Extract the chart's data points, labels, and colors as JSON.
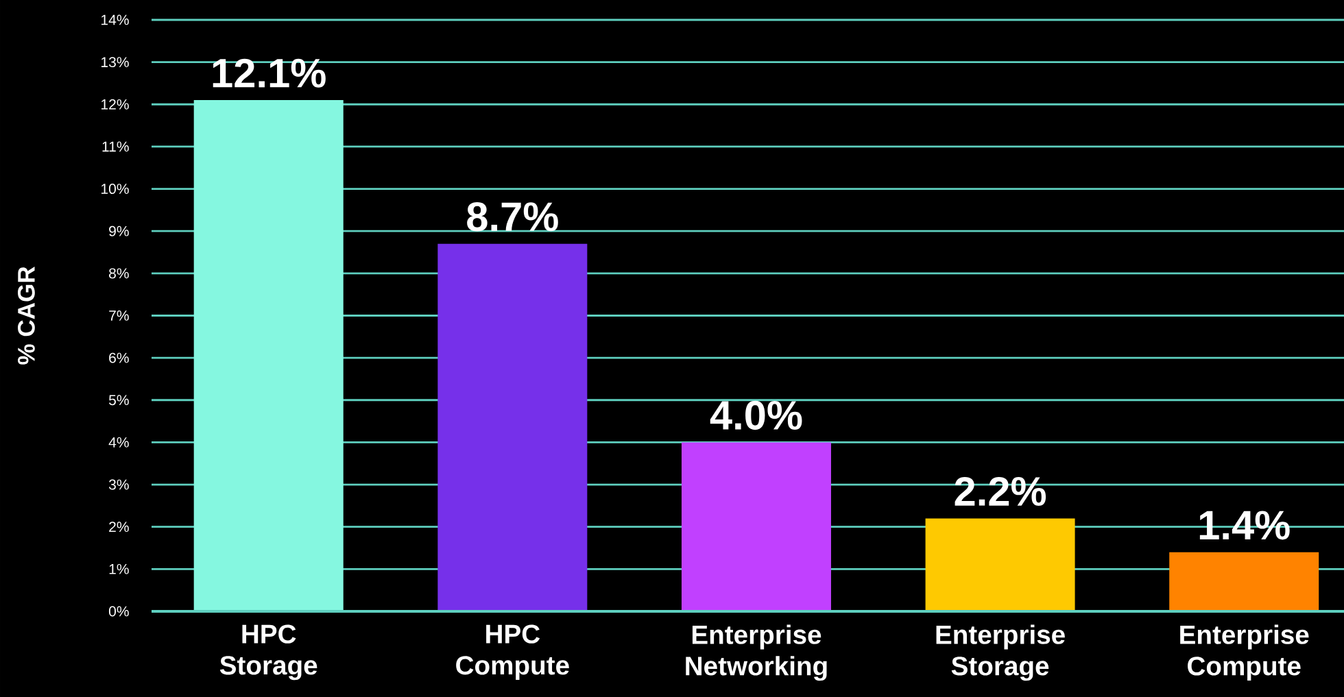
{
  "chart_data": {
    "type": "bar",
    "ylabel": "% CAGR",
    "categories": [
      "HPC Storage",
      "HPC Compute",
      "Enterprise Networking",
      "Enterprise Storage",
      "Enterprise Compute"
    ],
    "values": [
      12.1,
      8.7,
      4.0,
      2.2,
      1.4
    ],
    "colors": [
      "#85f7e0",
      "#7630ea",
      "#c140ff",
      "#fec901",
      "#ff8300"
    ],
    "value_labels": [
      "12.1%",
      "8.7%",
      "4.0%",
      "2.2%",
      "1.4%"
    ],
    "ylim": [
      0,
      14
    ],
    "yticks": [
      {
        "value": 0,
        "label": "0%"
      },
      {
        "value": 1,
        "label": "1%"
      },
      {
        "value": 2,
        "label": "2%"
      },
      {
        "value": 3,
        "label": "3%"
      },
      {
        "value": 4,
        "label": "4%"
      },
      {
        "value": 5,
        "label": "5%"
      },
      {
        "value": 6,
        "label": "6%"
      },
      {
        "value": 7,
        "label": "7%"
      },
      {
        "value": 8,
        "label": "8%"
      },
      {
        "value": 9,
        "label": "9%"
      },
      {
        "value": 10,
        "label": "10%"
      },
      {
        "value": 11,
        "label": "11%"
      },
      {
        "value": 12,
        "label": "12%"
      },
      {
        "value": 13,
        "label": "13%"
      },
      {
        "value": 14,
        "label": "14%"
      }
    ],
    "grid": "y"
  }
}
